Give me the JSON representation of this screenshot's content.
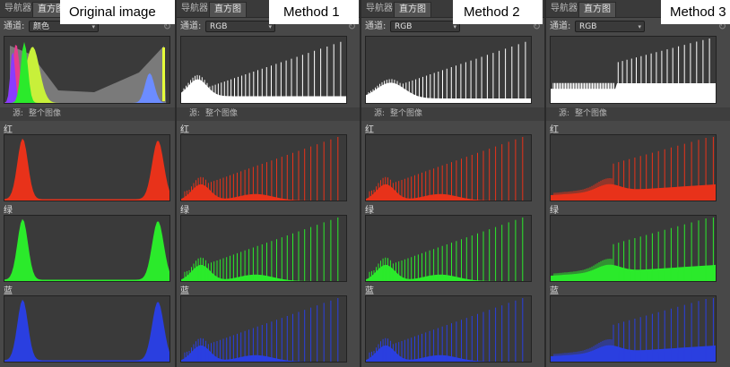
{
  "colors": {
    "red": "#e8321a",
    "green": "#2bea2b",
    "blue": "#2a3fe0",
    "hist_white": "#ffffff",
    "panel_bg": "#484848"
  },
  "captions": [
    "Original image",
    "Method 1",
    "Method 2",
    "Method 3"
  ],
  "panels": [
    {
      "tabs": [
        "导航器",
        "直方图"
      ],
      "channel_label": "通道:",
      "channel_value": "颜色",
      "source_label": "源:",
      "source_value": "整个图像",
      "channel_names": [
        "红",
        "绿",
        "蓝"
      ],
      "main_histogram": "composite color histogram with red/green/blue peaks at the dark end and at the bright end"
    },
    {
      "tabs": [
        "导航器",
        "直方图"
      ],
      "channel_label": "通道:",
      "channel_value": "RGB",
      "source_label": "源:",
      "source_value": "整个图像",
      "channel_names": [
        "红",
        "绿",
        "蓝"
      ],
      "main_histogram": "comb-like histogram with evenly spaced spikes rising toward the right"
    },
    {
      "tabs": [
        "导航器",
        "直方图"
      ],
      "channel_label": "通道:",
      "channel_value": "RGB",
      "source_label": "源:",
      "source_value": "整个图像",
      "channel_names": [
        "红",
        "绿",
        "蓝"
      ],
      "main_histogram": "comb-like histogram with a low hump on the left and spikes rising to the right"
    },
    {
      "tabs": [
        "导航器",
        "直方图"
      ],
      "channel_label": "通道:",
      "channel_value": "RGB",
      "source_label": "源:",
      "source_value": "整个图像",
      "channel_names": [
        "红",
        "绿",
        "蓝"
      ],
      "main_histogram": "dense low plateau with spikes rising toward the right"
    }
  ]
}
